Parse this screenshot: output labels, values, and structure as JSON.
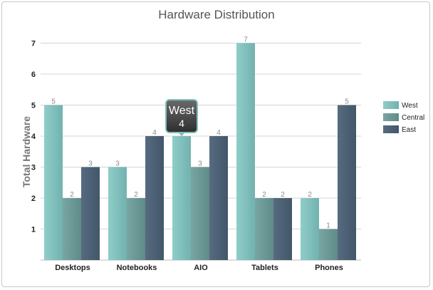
{
  "chart_data": {
    "type": "bar",
    "title": "Hardware Distribution",
    "xlabel": "",
    "ylabel": "Total Hardware",
    "categories": [
      "Desktops",
      "Notebooks",
      "AIO",
      "Tablets",
      "Phones"
    ],
    "series": [
      {
        "name": "West",
        "values": [
          5,
          3,
          4,
          7,
          2
        ],
        "color": "#7fbfbb"
      },
      {
        "name": "Central",
        "values": [
          2,
          2,
          3,
          2,
          1
        ],
        "color": "#6b9894"
      },
      {
        "name": "East",
        "values": [
          3,
          4,
          4,
          2,
          5
        ],
        "color": "#4b5f74"
      }
    ],
    "ylim": [
      0,
      7
    ],
    "yticks": [
      1,
      2,
      3,
      4,
      5,
      6,
      7
    ],
    "grid": true,
    "legend_position": "right",
    "tooltip": {
      "series": "West",
      "category": "AIO",
      "value": "4"
    }
  }
}
